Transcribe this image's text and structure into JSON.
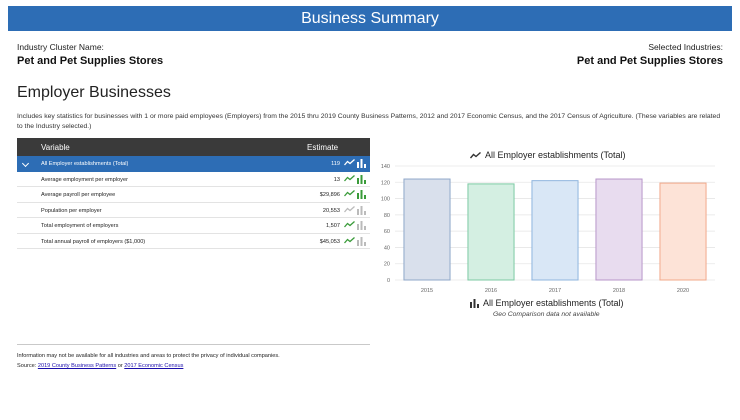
{
  "header": {
    "title": "Business Summary"
  },
  "industry": {
    "cluster_label": "Industry Cluster Name:",
    "cluster_value": "Pet and Pet Supplies Stores",
    "selected_label": "Selected Industries:",
    "selected_value": "Pet and Pet Supplies Stores"
  },
  "section": {
    "title": "Employer Businesses",
    "description": "Includes key statistics for businesses with 1 or more paid employees (Employers) from the 2015 thru 2019 County Business Patterns, 2012 and 2017 Economic Census, and the 2017 Census of Agriculture. (These variables are related to the Industry selected.)"
  },
  "table": {
    "col_variable": "Variable",
    "col_estimate": "Estimate",
    "rows": [
      {
        "name": "All Employer establishments (Total)",
        "value": "119"
      },
      {
        "name": "Average employment per employer",
        "value": "13"
      },
      {
        "name": "Average payroll per employee",
        "value": "$29,896"
      },
      {
        "name": "Population per employer",
        "value": "20,553"
      },
      {
        "name": "Total employment of employers",
        "value": "1,507"
      },
      {
        "name": "Total annual payroll of employers ($1,000)",
        "value": "$45,053"
      }
    ]
  },
  "footer": {
    "privacy_note": "Information may not be available for all industries and areas to protect the privacy of individual companies.",
    "source_prefix": "Source: ",
    "source_link1": "2019 County Business Patterns",
    "source_or": " or ",
    "source_link2": "2017 Economic Census"
  },
  "colors": {
    "accent": "#2d6db5",
    "icon_green": "#3a9b3a"
  },
  "chart_data": {
    "type": "bar",
    "title": "All Employer establishments (Total)",
    "categories": [
      "2015",
      "2016",
      "2017",
      "2018",
      "2020"
    ],
    "values": [
      124,
      118,
      122,
      124,
      119
    ],
    "bar_colors": [
      "#8fa7c9",
      "#7ccaa3",
      "#8fb5de",
      "#b795c9",
      "#f2a98a"
    ],
    "bar_fills": [
      "#d9e0ec",
      "#d4efe2",
      "#d9e7f6",
      "#e8dcef",
      "#fde3d7"
    ],
    "ylim": [
      0,
      140
    ],
    "yticks": [
      0,
      20,
      40,
      60,
      80,
      100,
      120,
      140
    ],
    "legend": "All Employer establishments (Total)",
    "note": "Geo Comparison data not available"
  }
}
